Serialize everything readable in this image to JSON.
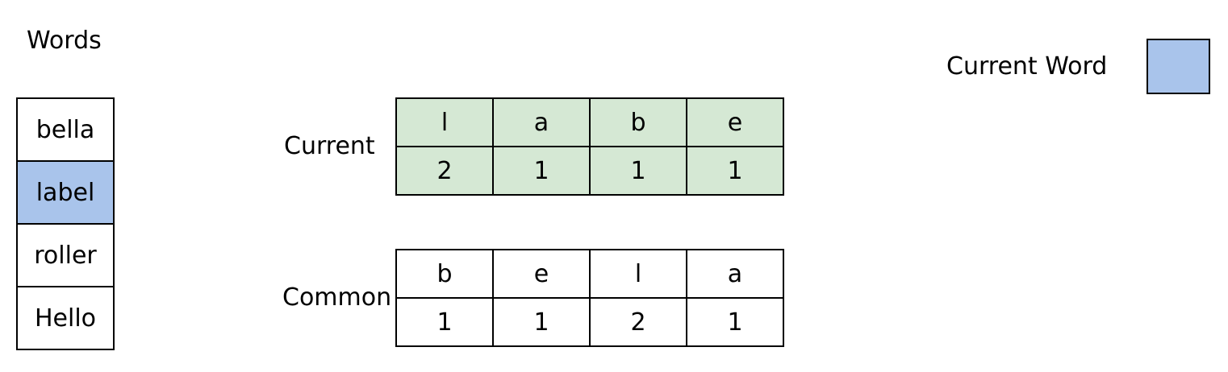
{
  "colors": {
    "highlight": "#a9c4eb",
    "current_fill": "#d5e8d4",
    "common_fill": "#ffffff",
    "border": "#000000"
  },
  "words": {
    "title": "Words",
    "items": [
      "bella",
      "label",
      "roller",
      "Hello"
    ],
    "current_index": 1
  },
  "legend": {
    "label": "Current Word"
  },
  "current": {
    "label": "Current",
    "letters": [
      "l",
      "a",
      "b",
      "e"
    ],
    "counts": [
      "2",
      "1",
      "1",
      "1"
    ]
  },
  "common": {
    "label": "Common",
    "letters": [
      "b",
      "e",
      "l",
      "a"
    ],
    "counts": [
      "1",
      "1",
      "2",
      "1"
    ]
  }
}
